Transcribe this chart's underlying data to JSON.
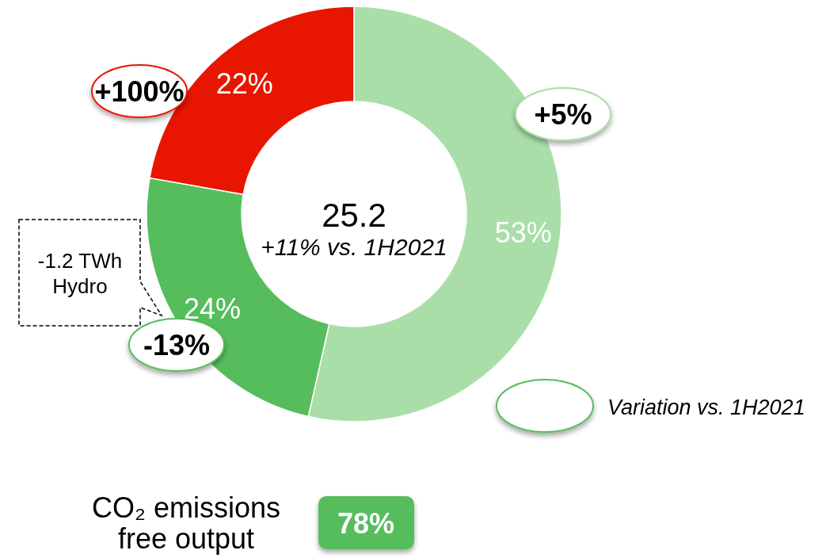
{
  "chart_data": {
    "type": "donut",
    "categories": [
      null,
      null,
      null
    ],
    "values": [
      53,
      24,
      22
    ],
    "colors": [
      "#a9dea9",
      "#56bd5d",
      "#e81600"
    ],
    "value_labels": [
      "53%",
      "24%",
      "22%"
    ],
    "annotations": [
      "25.2",
      "+11% vs. 1H2021",
      "+5%",
      "-13%",
      "+100%",
      "-1.2 TWh Hydro",
      "Variation vs. 1H2021",
      "CO₂ emissions free output",
      "78%"
    ]
  }
}
